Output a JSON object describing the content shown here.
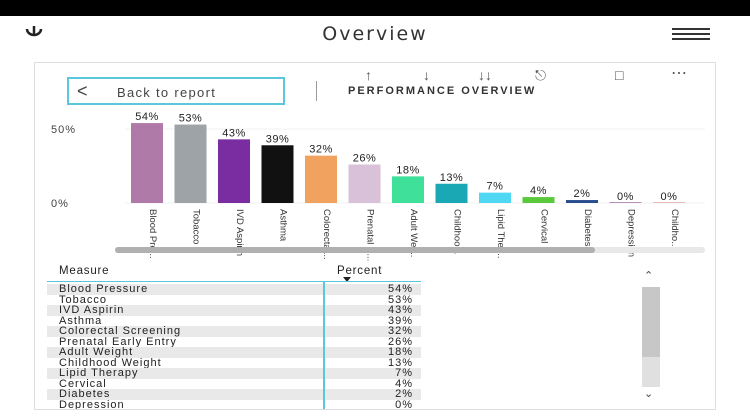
{
  "header": {
    "title": "Overview"
  },
  "toolbar": {
    "back_label": "Back to report",
    "section_title": "PERFORMANCE OVERVIEW",
    "icons": [
      "arrow-up-icon",
      "arrow-down-icon",
      "double-arrow-down-icon",
      "expand-hierarchy-icon",
      "focus-mode-icon",
      "more-options-icon"
    ]
  },
  "chart_data": {
    "type": "bar",
    "categories": [
      "Blood Pre...",
      "Tobacco",
      "IVD Aspirin",
      "Asthma",
      "Colorectal...",
      "Prenatal E...",
      "Adult Wei...",
      "Childhoo...",
      "Lipid Ther...",
      "Cervical",
      "Diabetes",
      "Depression",
      "Childho..."
    ],
    "values": [
      54,
      53,
      43,
      39,
      32,
      26,
      18,
      13,
      7,
      4,
      2,
      0,
      0
    ],
    "data_labels": [
      "54%",
      "53%",
      "43%",
      "39%",
      "32%",
      "26%",
      "18%",
      "13%",
      "7%",
      "4%",
      "2%",
      "0%",
      "0%"
    ],
    "colors": [
      "#b07aa8",
      "#9ea3a8",
      "#7a2da0",
      "#111111",
      "#f0a25e",
      "#d9c2d9",
      "#3fe09a",
      "#1aa8b5",
      "#4fd7f3",
      "#59c93b",
      "#2a4d8f",
      "#b88fb5",
      "#e8b9b9"
    ],
    "y_ticks": [
      "50%",
      "0%"
    ],
    "ylim": [
      0,
      60
    ],
    "grid": true
  },
  "table": {
    "headers": {
      "measure": "Measure",
      "percent": "Percent"
    },
    "rows": [
      {
        "measure": "Blood Pressure",
        "percent": "54%"
      },
      {
        "measure": "Tobacco",
        "percent": "53%"
      },
      {
        "measure": "IVD Aspirin",
        "percent": "43%"
      },
      {
        "measure": "Asthma",
        "percent": "39%"
      },
      {
        "measure": "Colorectal Screening",
        "percent": "32%"
      },
      {
        "measure": "Prenatal Early Entry",
        "percent": "26%"
      },
      {
        "measure": "Adult Weight",
        "percent": "18%"
      },
      {
        "measure": "Childhood Weight",
        "percent": "13%"
      },
      {
        "measure": "Lipid Therapy",
        "percent": "7%"
      },
      {
        "measure": "Cervical",
        "percent": "4%"
      },
      {
        "measure": "Diabetes",
        "percent": "2%"
      },
      {
        "measure": "Depression",
        "percent": "0%"
      }
    ]
  }
}
